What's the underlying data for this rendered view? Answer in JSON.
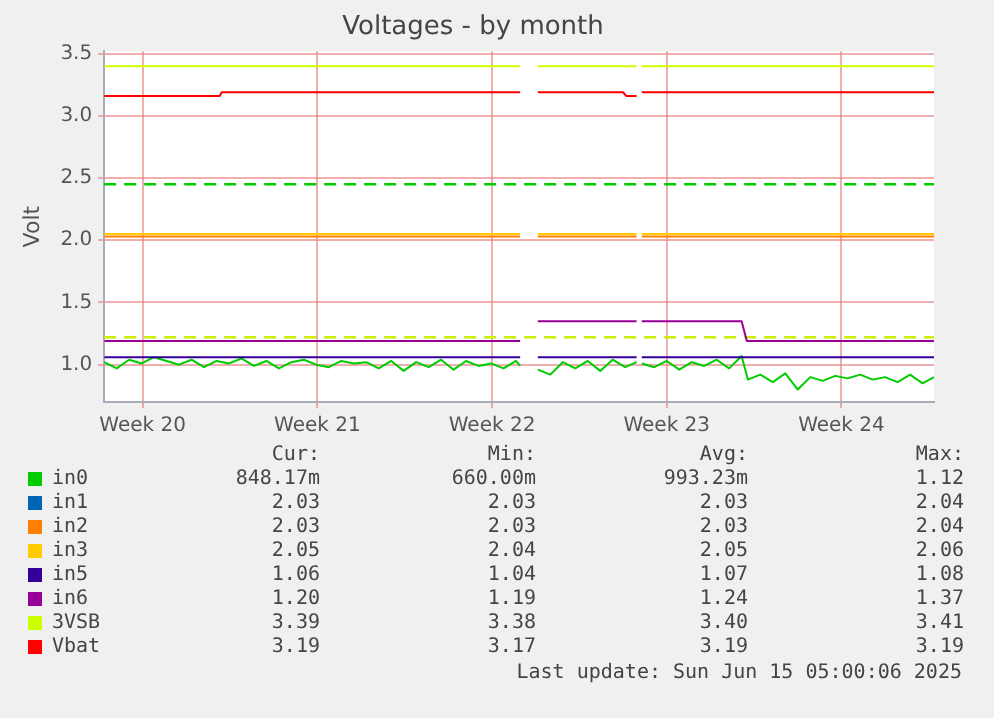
{
  "chart_data": {
    "type": "line",
    "title": "Voltages - by month",
    "ylabel": "Volt",
    "xlim": [
      "2025-05-12T23:00",
      "2025-06-15T05:00"
    ],
    "xticks": [
      {
        "value": "2025-05-14T12:00",
        "label": "Week 20"
      },
      {
        "value": "2025-05-21T12:00",
        "label": "Week 21"
      },
      {
        "value": "2025-05-28T12:00",
        "label": "Week 22"
      },
      {
        "value": "2025-06-04T12:00",
        "label": "Week 23"
      },
      {
        "value": "2025-06-11T12:00",
        "label": "Week 24"
      }
    ],
    "ylim": [
      0.7,
      3.52
    ],
    "yticks": [
      {
        "value": 1,
        "label": "1.0"
      },
      {
        "value": 1.5,
        "label": "1.5"
      },
      {
        "value": 2,
        "label": "2.0"
      },
      {
        "value": 2.5,
        "label": "2.5"
      },
      {
        "value": 3,
        "label": "3.0"
      },
      {
        "value": 3.5,
        "label": "3.5"
      }
    ],
    "grid": true,
    "legend": "bottom",
    "marker": "none",
    "line_style": "solid",
    "ref_lines": [
      {
        "axis": "y",
        "value": 2.45,
        "color": "#00cc00",
        "line_style": "dashed"
      },
      {
        "axis": "y",
        "value": 1.22,
        "color": "#ccee00",
        "line_style": "dashed"
      }
    ],
    "series": [
      {
        "name": "in0",
        "color": "#00cc00",
        "x": [
          "2025-05-12T23:00",
          "2025-05-13T11:00",
          "2025-05-13T23:00",
          "2025-05-14T11:00",
          "2025-05-14T23:00",
          "2025-05-15T11:00",
          "2025-05-15T23:00",
          "2025-05-16T11:00",
          "2025-05-16T23:00",
          "2025-05-17T11:00",
          "2025-05-17T23:00",
          "2025-05-18T11:00",
          "2025-05-18T23:00",
          "2025-05-19T11:00",
          "2025-05-19T23:00",
          "2025-05-20T11:00",
          "2025-05-20T23:00",
          "2025-05-21T11:00",
          "2025-05-21T23:00",
          "2025-05-22T11:00",
          "2025-05-22T23:00",
          "2025-05-23T11:00",
          "2025-05-23T23:00",
          "2025-05-24T11:00",
          "2025-05-24T23:00",
          "2025-05-25T11:00",
          "2025-05-25T23:00",
          "2025-05-26T11:00",
          "2025-05-26T23:00",
          "2025-05-27T11:00",
          "2025-05-27T23:00",
          "2025-05-28T11:00",
          "2025-05-28T23:00",
          "2025-05-29T11:00",
          "2025-05-29T15:00",
          "2025-05-29T23:00",
          "2025-05-30T08:00",
          "2025-05-30T20:00",
          "2025-05-31T08:00",
          "2025-05-31T20:00",
          "2025-06-01T08:00",
          "2025-06-01T20:00",
          "2025-06-02T08:00",
          "2025-06-02T20:00",
          "2025-06-03T07:00",
          "2025-06-03T09:00",
          "2025-06-03T12:00",
          "2025-06-04T00:00",
          "2025-06-04T12:00",
          "2025-06-05T00:00",
          "2025-06-05T12:00",
          "2025-06-06T00:00",
          "2025-06-06T12:00",
          "2025-06-07T00:00",
          "2025-06-07T12:00",
          "2025-06-07T18:00",
          "2025-06-08T06:00",
          "2025-06-08T18:00",
          "2025-06-09T06:00",
          "2025-06-09T18:00",
          "2025-06-10T06:00",
          "2025-06-10T18:00",
          "2025-06-11T06:00",
          "2025-06-11T18:00",
          "2025-06-12T06:00",
          "2025-06-12T18:00",
          "2025-06-13T06:00",
          "2025-06-13T18:00",
          "2025-06-14T06:00",
          "2025-06-14T18:00",
          "2025-06-15T05:00"
        ],
        "values": [
          1.02,
          0.97,
          1.04,
          1.01,
          1.06,
          1.03,
          1.0,
          1.04,
          0.98,
          1.03,
          1.01,
          1.05,
          0.99,
          1.03,
          0.97,
          1.02,
          1.04,
          1.0,
          0.98,
          1.03,
          1.01,
          1.02,
          0.97,
          1.03,
          0.95,
          1.02,
          0.98,
          1.04,
          0.96,
          1.03,
          0.99,
          1.01,
          0.97,
          1.03,
          0.99,
          null,
          0.96,
          0.92,
          1.02,
          0.97,
          1.03,
          0.95,
          1.04,
          0.98,
          1.02,
          null,
          1.01,
          0.98,
          1.03,
          0.96,
          1.02,
          0.99,
          1.04,
          0.97,
          1.07,
          0.88,
          0.92,
          0.86,
          0.93,
          0.8,
          0.9,
          0.87,
          0.91,
          0.89,
          0.92,
          0.88,
          0.9,
          0.86,
          0.92,
          0.85,
          0.9
        ]
      },
      {
        "name": "in1",
        "color": "#0066b3"
      },
      {
        "name": "in2",
        "color": "#ff8000",
        "x": [
          "2025-05-12T23:00",
          "2025-05-29T15:00",
          "2025-05-29T23:00",
          "2025-05-30T08:00",
          "2025-06-03T07:00",
          "2025-06-03T09:00",
          "2025-06-03T12:00",
          "2025-06-15T05:00"
        ],
        "values": [
          2.03,
          2.03,
          null,
          2.03,
          2.03,
          null,
          2.03,
          2.03
        ]
      },
      {
        "name": "in3",
        "color": "#ffcc00",
        "x": [
          "2025-05-12T23:00",
          "2025-05-29T15:00",
          "2025-05-29T23:00",
          "2025-05-30T08:00",
          "2025-06-03T07:00",
          "2025-06-03T09:00",
          "2025-06-03T12:00",
          "2025-06-15T05:00"
        ],
        "values": [
          2.05,
          2.05,
          null,
          2.05,
          2.05,
          null,
          2.05,
          2.05
        ]
      },
      {
        "name": "in5",
        "color": "#330099",
        "x": [
          "2025-05-12T23:00",
          "2025-05-29T15:00",
          "2025-05-29T23:00",
          "2025-05-30T08:00",
          "2025-06-03T07:00",
          "2025-06-03T09:00",
          "2025-06-03T12:00",
          "2025-06-15T05:00"
        ],
        "values": [
          1.06,
          1.06,
          null,
          1.06,
          1.06,
          null,
          1.06,
          1.06
        ]
      },
      {
        "name": "in6",
        "color": "#990099",
        "x": [
          "2025-05-12T23:00",
          "2025-05-29T15:00",
          "2025-05-29T23:00",
          "2025-05-30T08:00",
          "2025-06-03T07:00",
          "2025-06-03T09:00",
          "2025-06-03T12:00",
          "2025-06-07T12:00",
          "2025-06-07T17:00",
          "2025-06-15T05:00"
        ],
        "values": [
          1.19,
          1.19,
          null,
          1.35,
          1.35,
          null,
          1.35,
          1.35,
          1.19,
          1.19
        ]
      },
      {
        "name": "3VSB",
        "color": "#ccff00",
        "x": [
          "2025-05-12T23:00",
          "2025-05-29T15:00",
          "2025-05-29T23:00",
          "2025-05-30T08:00",
          "2025-06-03T07:00",
          "2025-06-03T09:00",
          "2025-06-03T12:00",
          "2025-06-15T05:00"
        ],
        "values": [
          3.4,
          3.4,
          null,
          3.4,
          3.4,
          null,
          3.4,
          3.4
        ]
      },
      {
        "name": "Vbat",
        "color": "#ff0000",
        "x": [
          "2025-05-12T23:00",
          "2025-05-17T14:00",
          "2025-05-17T16:00",
          "2025-05-29T15:00",
          "2025-05-29T23:00",
          "2025-05-30T08:00",
          "2025-06-02T18:00",
          "2025-06-02T21:00",
          "2025-06-03T07:00",
          "2025-06-03T09:00",
          "2025-06-03T12:00",
          "2025-06-15T05:00"
        ],
        "values": [
          3.16,
          3.16,
          3.19,
          3.19,
          null,
          3.19,
          3.19,
          3.16,
          3.16,
          null,
          3.19,
          3.19
        ]
      }
    ],
    "annotations": [
      "Cur:",
      "Min:",
      "Avg:",
      "Max:",
      "848.17m",
      "660.00m",
      "993.23m",
      "1.12",
      "2.03",
      "2.03",
      "2.03",
      "2.04",
      "2.03",
      "2.03",
      "2.03",
      "2.04",
      "2.05",
      "2.04",
      "2.05",
      "2.06",
      "1.06",
      "1.04",
      "1.07",
      "1.08",
      "1.20",
      "1.19",
      "1.24",
      "1.37",
      "3.39",
      "3.38",
      "3.40",
      "3.41",
      "3.19",
      "3.17",
      "3.19",
      "3.19",
      "Last update: Sun Jun 15 05:00:06 2025"
    ]
  }
}
